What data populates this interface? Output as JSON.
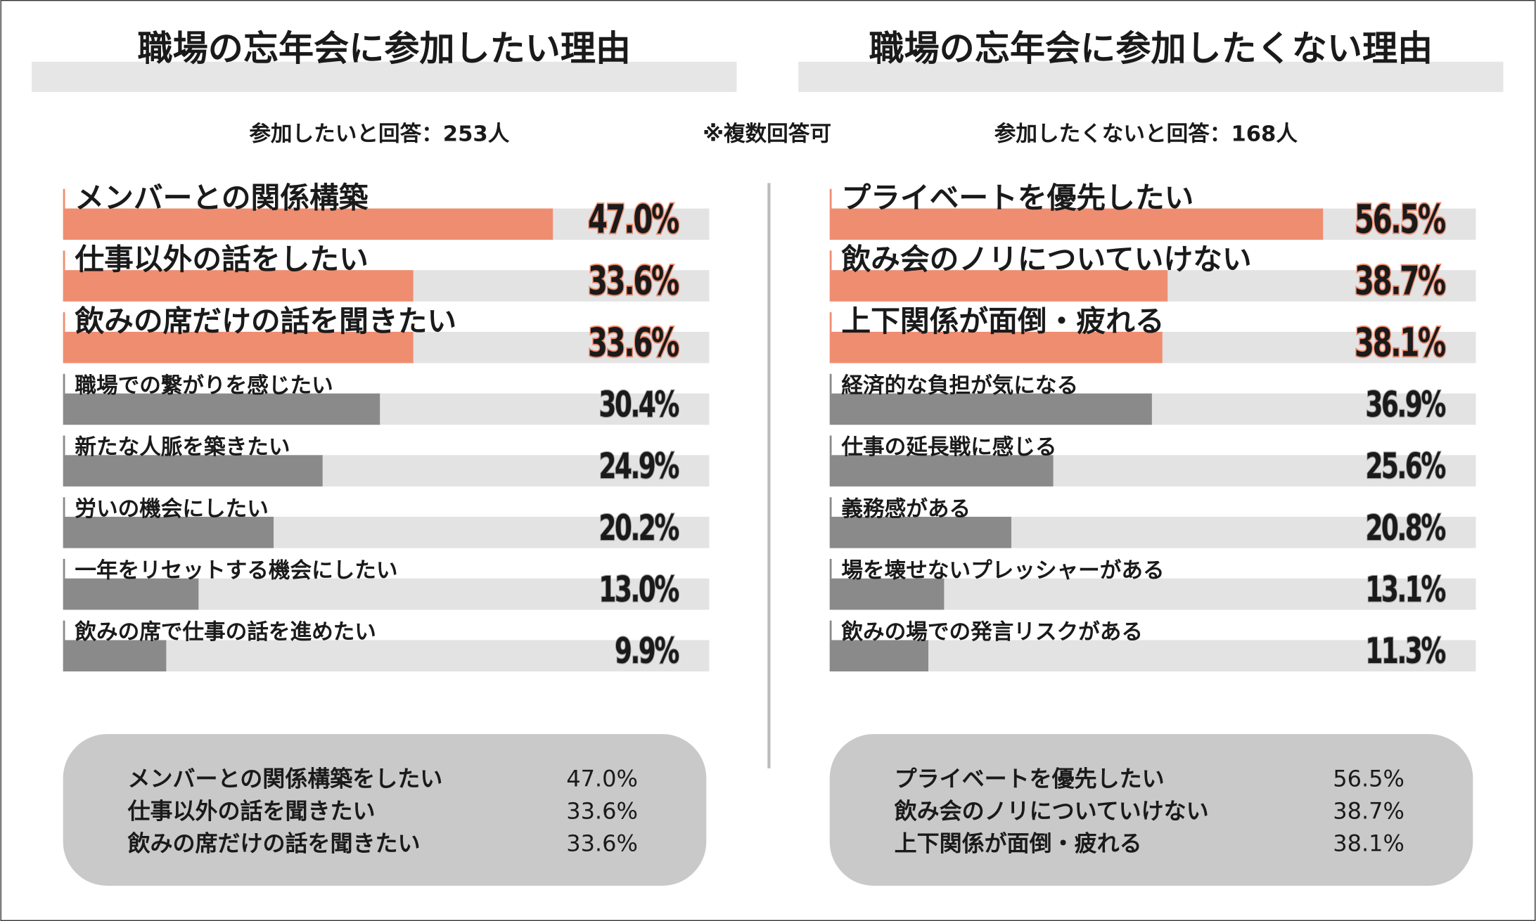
{
  "note": "※複数回答可",
  "chart_data": [
    {
      "type": "bar",
      "orientation": "horizontal",
      "title": "職場の忘年会に参加したい理由",
      "subtitle": "参加したいと回答：253人",
      "categories": [
        "メンバーとの関係構築",
        "仕事以外の話をしたい",
        "飲みの席だけの話を聞きたい",
        "職場での繋がりを感じたい",
        "新たな人脈を築きたい",
        "労いの機会にしたい",
        "一年をリセットする機会にしたい",
        "飲みの席で仕事の話を進めたい"
      ],
      "values": [
        47.0,
        33.6,
        33.6,
        30.4,
        24.9,
        20.2,
        13.0,
        9.9
      ],
      "value_labels": [
        "47.0%",
        "33.6%",
        "33.6%",
        "30.4%",
        "24.9%",
        "20.2%",
        "13.0%",
        "9.9%"
      ],
      "colors": [
        "#ef8d70",
        "#ef8d70",
        "#ef8d70",
        "#8a8a8a",
        "#8a8a8a",
        "#8a8a8a",
        "#8a8a8a",
        "#8a8a8a"
      ],
      "xlim": [
        0,
        62
      ],
      "summary": [
        [
          "メンバーとの関係構築をしたい",
          "47.0%"
        ],
        [
          "仕事以外の話を聞きたい",
          "33.6%"
        ],
        [
          "飲みの席だけの話を聞きたい",
          "33.6%"
        ]
      ]
    },
    {
      "type": "bar",
      "orientation": "horizontal",
      "title": "職場の忘年会に参加したくない理由",
      "subtitle": "参加したくないと回答：168人",
      "categories": [
        "プライベートを優先したい",
        "飲み会のノリについていけない",
        "上下関係が面倒・疲れる",
        "経済的な負担が気になる",
        "仕事の延長戦に感じる",
        "義務感がある",
        "場を壊せないプレッシャーがある",
        "飲みの場での発言リスクがある"
      ],
      "values": [
        56.5,
        38.7,
        38.1,
        36.9,
        25.6,
        20.8,
        13.1,
        11.3
      ],
      "value_labels": [
        "56.5%",
        "38.7%",
        "38.1%",
        "36.9%",
        "25.6%",
        "20.8%",
        "13.1%",
        "11.3%"
      ],
      "colors": [
        "#ef8d70",
        "#ef8d70",
        "#ef8d70",
        "#8a8a8a",
        "#8a8a8a",
        "#8a8a8a",
        "#8a8a8a",
        "#8a8a8a"
      ],
      "xlim": [
        0,
        74
      ],
      "summary": [
        [
          "プライベートを優先したい",
          "56.5%"
        ],
        [
          "飲み会のノリについていけない",
          "38.7%"
        ],
        [
          "上下関係が面倒・疲れる",
          "38.1%"
        ]
      ]
    }
  ]
}
